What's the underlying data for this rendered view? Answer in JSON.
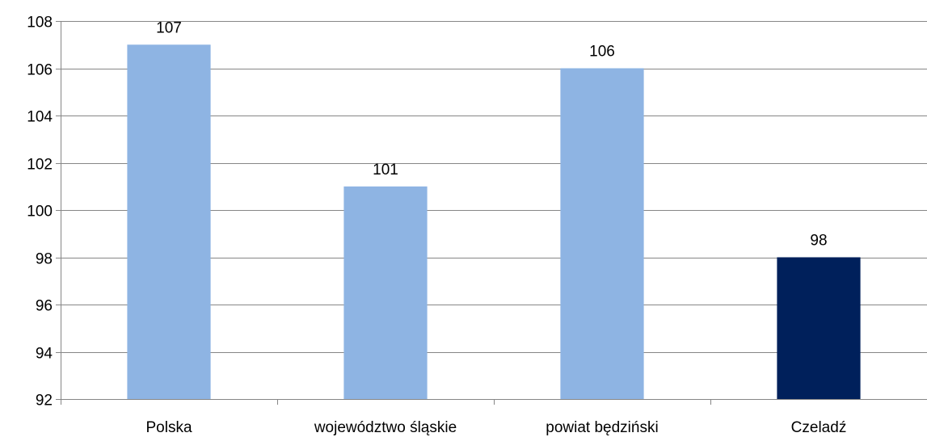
{
  "chart_data": {
    "type": "bar",
    "title": "",
    "xlabel": "",
    "ylabel": "",
    "categories": [
      "Polska",
      "województwo śląskie",
      "powiat będziński",
      "Czeladź"
    ],
    "values": [
      107,
      101,
      106,
      98
    ],
    "data_labels": [
      "107",
      "101",
      "106",
      "98"
    ],
    "bar_colors": [
      "#8EB4E3",
      "#8EB4E3",
      "#8EB4E3",
      "#00205B"
    ],
    "ylim": [
      92,
      108
    ],
    "yticks": [
      92,
      94,
      96,
      98,
      100,
      102,
      104,
      106,
      108
    ],
    "grid": true,
    "legend": "none"
  }
}
